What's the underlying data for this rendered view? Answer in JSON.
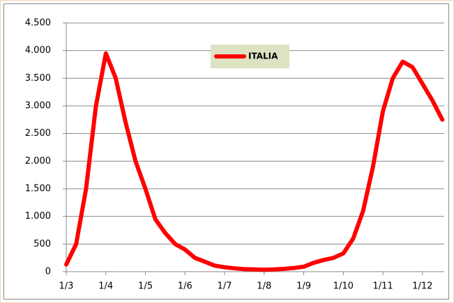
{
  "chart_data": {
    "type": "line",
    "categories": [
      "1/3",
      null,
      null,
      null,
      "1/4",
      null,
      null,
      null,
      "1/5",
      null,
      null,
      null,
      "1/6",
      null,
      null,
      null,
      "1/7",
      null,
      null,
      null,
      "1/8",
      null,
      null,
      null,
      "1/9",
      null,
      null,
      null,
      "1/10",
      null,
      null,
      null,
      "1/11",
      null,
      null,
      null,
      "1/12",
      null,
      null
    ],
    "series": [
      {
        "name": "ITALIA",
        "color": "#ff0000",
        "values": [
          130,
          500,
          1500,
          3000,
          3950,
          3500,
          2700,
          2000,
          1500,
          950,
          700,
          500,
          400,
          250,
          180,
          110,
          80,
          60,
          45,
          40,
          35,
          40,
          50,
          65,
          90,
          160,
          210,
          250,
          330,
          600,
          1100,
          1900,
          2900,
          3500,
          3800,
          3700,
          3400,
          3100,
          2750
        ]
      }
    ],
    "ylim": [
      0,
      4500
    ],
    "yticks": [
      0,
      500,
      {
        "value": 1000,
        "label": "1.000"
      },
      {
        "value": 1500,
        "label": "1.500"
      },
      {
        "value": 2000,
        "label": "2.000"
      },
      {
        "value": 2500,
        "label": "2.500"
      },
      {
        "value": 3000,
        "label": "3.000"
      },
      {
        "value": 3500,
        "label": "3.500"
      },
      {
        "value": 4000,
        "label": "4.000"
      },
      {
        "value": 4500,
        "label": "4.500"
      }
    ],
    "grid": true
  }
}
